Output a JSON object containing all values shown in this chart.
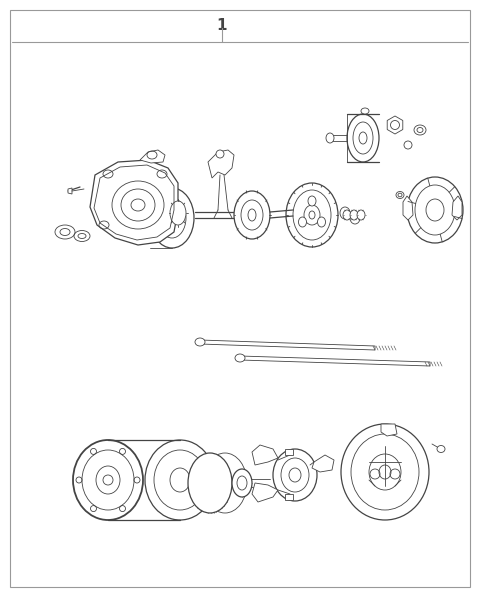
{
  "title_label": "1",
  "border_color": "#999999",
  "line_color": "#444444",
  "background": "#ffffff",
  "fig_width": 4.8,
  "fig_height": 5.97,
  "dpi": 100,
  "lw_thin": 0.6,
  "lw_med": 0.9,
  "lw_thick": 1.3
}
